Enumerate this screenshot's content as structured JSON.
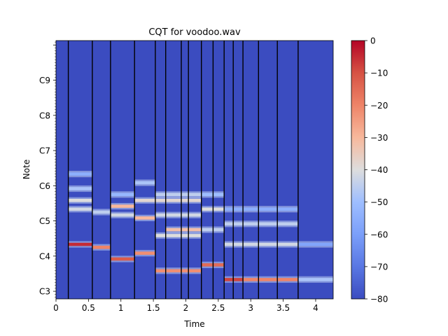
{
  "chart_data": {
    "type": "heatmap",
    "title": "CQT for voodoo.wav",
    "xlabel": "Time",
    "ylabel": "Note",
    "xlim": [
      0,
      4.27
    ],
    "ylim_semitones": [
      -14.6,
      73.5
    ],
    "x_ticks": [
      {
        "value": 0,
        "label": "0"
      },
      {
        "value": 0.5,
        "label": "0.5"
      },
      {
        "value": 1,
        "label": "1"
      },
      {
        "value": 1.5,
        "label": "1.5"
      },
      {
        "value": 2,
        "label": "2"
      },
      {
        "value": 2.5,
        "label": "2.5"
      },
      {
        "value": 3,
        "label": "3"
      },
      {
        "value": 3.5,
        "label": "3.5"
      },
      {
        "value": 4,
        "label": "4"
      }
    ],
    "y_ticks": [
      {
        "value": -12,
        "label": "C3"
      },
      {
        "value": 0,
        "label": "C4"
      },
      {
        "value": 12,
        "label": "C5"
      },
      {
        "value": 24,
        "label": "C6"
      },
      {
        "value": 36,
        "label": "C7"
      },
      {
        "value": 48,
        "label": "C8"
      },
      {
        "value": 60,
        "label": "C9"
      }
    ],
    "colorbar": {
      "range": [
        -80,
        0
      ],
      "ticks": [
        {
          "value": 0,
          "label": "0"
        },
        {
          "value": -10,
          "label": "−10"
        },
        {
          "value": -20,
          "label": "−20"
        },
        {
          "value": -30,
          "label": "−30"
        },
        {
          "value": -40,
          "label": "−40"
        },
        {
          "value": -50,
          "label": "−50"
        },
        {
          "value": -60,
          "label": "−60"
        },
        {
          "value": -70,
          "label": "−70"
        },
        {
          "value": -80,
          "label": "−80"
        }
      ],
      "colormap": "coolwarm"
    },
    "onsets": [
      0.19,
      0.56,
      0.84,
      1.21,
      1.53,
      1.69,
      1.93,
      2.04,
      2.24,
      2.42,
      2.59,
      2.73,
      2.88,
      3.12,
      3.41,
      3.73
    ],
    "notes": [
      {
        "start": 0.19,
        "end": 0.56,
        "pitch": 4,
        "level": -5
      },
      {
        "start": 0.56,
        "end": 0.84,
        "pitch": 3,
        "level": -20
      },
      {
        "start": 0.84,
        "end": 1.21,
        "pitch": -1,
        "level": -12
      },
      {
        "start": 1.21,
        "end": 1.53,
        "pitch": 1,
        "level": -22
      },
      {
        "start": 1.53,
        "end": 2.24,
        "pitch": -5,
        "level": -22
      },
      {
        "start": 2.24,
        "end": 2.59,
        "pitch": -3,
        "level": -15
      },
      {
        "start": 2.59,
        "end": 2.88,
        "pitch": -8,
        "level": -8
      },
      {
        "start": 2.88,
        "end": 3.73,
        "pitch": -8,
        "level": -20
      },
      {
        "start": 3.73,
        "end": 4.27,
        "pitch": -8,
        "level": -48
      },
      {
        "start": 0.19,
        "end": 0.56,
        "pitch": 16,
        "level": -42
      },
      {
        "start": 0.19,
        "end": 0.56,
        "pitch": 19,
        "level": -40
      },
      {
        "start": 0.19,
        "end": 0.56,
        "pitch": 23,
        "level": -48
      },
      {
        "start": 0.19,
        "end": 0.56,
        "pitch": 28,
        "level": -55
      },
      {
        "start": 0.56,
        "end": 0.84,
        "pitch": 15,
        "level": -45
      },
      {
        "start": 0.84,
        "end": 1.21,
        "pitch": 14,
        "level": -42
      },
      {
        "start": 0.84,
        "end": 1.21,
        "pitch": 17,
        "level": -30
      },
      {
        "start": 0.84,
        "end": 1.21,
        "pitch": 21,
        "level": -52
      },
      {
        "start": 1.21,
        "end": 1.53,
        "pitch": 13,
        "level": -30
      },
      {
        "start": 1.21,
        "end": 1.53,
        "pitch": 19,
        "level": -38
      },
      {
        "start": 1.21,
        "end": 1.53,
        "pitch": 25,
        "level": -48
      },
      {
        "start": 1.53,
        "end": 2.24,
        "pitch": 7,
        "level": -40
      },
      {
        "start": 1.53,
        "end": 2.24,
        "pitch": 14,
        "level": -42
      },
      {
        "start": 1.53,
        "end": 2.24,
        "pitch": 19,
        "level": -38
      },
      {
        "start": 1.53,
        "end": 2.24,
        "pitch": 21,
        "level": -45
      },
      {
        "start": 1.69,
        "end": 2.24,
        "pitch": 9,
        "level": -32
      },
      {
        "start": 2.24,
        "end": 2.59,
        "pitch": 9,
        "level": -45
      },
      {
        "start": 2.24,
        "end": 2.59,
        "pitch": 16,
        "level": -40
      },
      {
        "start": 2.24,
        "end": 2.59,
        "pitch": 21,
        "level": -50
      },
      {
        "start": 2.59,
        "end": 3.73,
        "pitch": 4,
        "level": -42
      },
      {
        "start": 2.59,
        "end": 3.73,
        "pitch": 11,
        "level": -45
      },
      {
        "start": 2.59,
        "end": 3.73,
        "pitch": 16,
        "level": -55
      },
      {
        "start": 3.73,
        "end": 4.27,
        "pitch": 4,
        "level": -58
      }
    ]
  }
}
